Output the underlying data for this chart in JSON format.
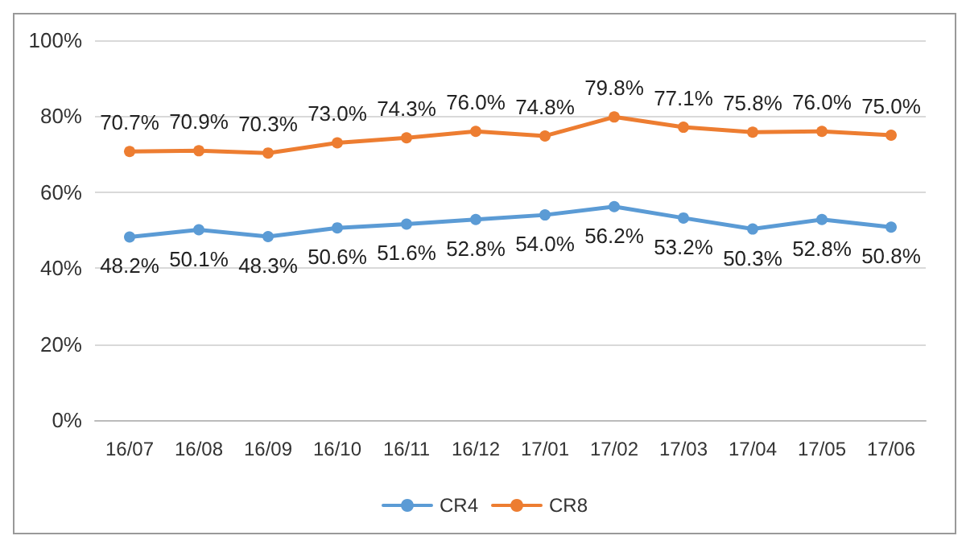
{
  "chart_data": {
    "type": "line",
    "categories": [
      "16/07",
      "16/08",
      "16/09",
      "16/10",
      "16/11",
      "16/12",
      "17/01",
      "17/02",
      "17/03",
      "17/04",
      "17/05",
      "17/06"
    ],
    "series": [
      {
        "name": "CR4",
        "color": "#5b9bd5",
        "values": [
          48.2,
          50.1,
          48.3,
          50.6,
          51.6,
          52.8,
          54.0,
          56.2,
          53.2,
          50.3,
          52.8,
          50.8
        ],
        "value_labels": [
          "48.2%",
          "50.1%",
          "48.3%",
          "50.6%",
          "51.6%",
          "52.8%",
          "54.0%",
          "56.2%",
          "53.2%",
          "50.3%",
          "52.8%",
          "50.8%"
        ]
      },
      {
        "name": "CR8",
        "color": "#ed7d31",
        "values": [
          70.7,
          70.9,
          70.3,
          73.0,
          74.3,
          76.0,
          74.8,
          79.8,
          77.1,
          75.8,
          76.0,
          75.0
        ],
        "value_labels": [
          "70.7%",
          "70.9%",
          "70.3%",
          "73.0%",
          "74.3%",
          "76.0%",
          "74.8%",
          "79.8%",
          "77.1%",
          "75.8%",
          "76.0%",
          "75.0%"
        ]
      }
    ],
    "ylim": [
      0,
      100
    ],
    "yticks": [
      {
        "value": 0,
        "label": "0%"
      },
      {
        "value": 20,
        "label": "20%"
      },
      {
        "value": 40,
        "label": "40%"
      },
      {
        "value": 60,
        "label": "60%"
      },
      {
        "value": 80,
        "label": "80%"
      },
      {
        "value": 100,
        "label": "100%"
      }
    ],
    "grid": "y",
    "legend": "bottom",
    "marker": "circle",
    "line_style": "solid"
  }
}
